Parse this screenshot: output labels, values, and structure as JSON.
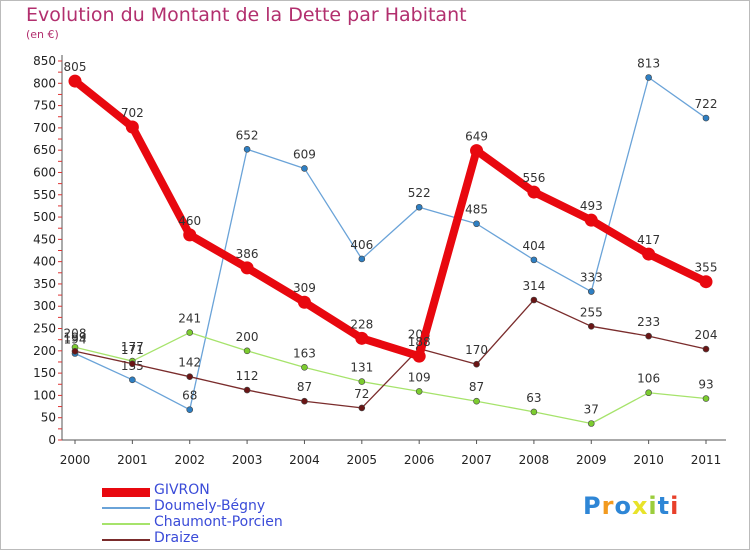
{
  "header": {
    "title": "Evolution du Montant de la Dette par Habitant",
    "subtitle": "(en €)"
  },
  "chart_data": {
    "type": "line",
    "title": "Evolution du Montant de la Dette par Habitant",
    "subtitle": "(en €)",
    "x": [
      "2000",
      "2001",
      "2002",
      "2003",
      "2004",
      "2005",
      "2006",
      "2007",
      "2008",
      "2009",
      "2010",
      "2011"
    ],
    "ylim": [
      0,
      850
    ],
    "yticks": [
      0,
      50,
      100,
      150,
      200,
      250,
      300,
      350,
      400,
      450,
      500,
      550,
      600,
      650,
      700,
      750,
      800,
      850
    ],
    "grid": false,
    "legend_position": "bottom-left",
    "series": [
      {
        "name": "GIVRON",
        "color": "#e8080f",
        "emphasis": true,
        "values": [
          805,
          702,
          460,
          386,
          309,
          228,
          188,
          649,
          556,
          493,
          417,
          355
        ],
        "labels": [
          "805",
          "702",
          "460",
          "386",
          "309",
          "228",
          "188",
          "649",
          "556",
          "493",
          "417",
          "355"
        ]
      },
      {
        "name": "Doumely-Bégny",
        "color": "#6aa3d8",
        "marker": "#2e7fc3",
        "values": [
          194,
          135,
          68,
          652,
          609,
          406,
          522,
          485,
          404,
          333,
          813,
          722
        ],
        "labels": [
          "194",
          "135",
          "68",
          "652",
          "609",
          "406",
          "522",
          "485",
          "404",
          "333",
          "813",
          "722"
        ]
      },
      {
        "name": "Chaumont-Porcien",
        "color": "#a6e36b",
        "marker": "#7ccc2f",
        "values": [
          208,
          177,
          241,
          200,
          163,
          131,
          109,
          87,
          63,
          37,
          106,
          93
        ],
        "labels": [
          "208",
          "177",
          "241",
          "200",
          "163",
          "131",
          "109",
          "87",
          "63",
          "37",
          "106",
          "93"
        ]
      },
      {
        "name": "Draize",
        "color": "#7a2c2c",
        "marker": "#6a1515",
        "values": [
          199,
          171,
          142,
          112,
          87,
          72,
          205,
          170,
          314,
          255,
          233,
          204
        ],
        "labels": [
          "199",
          "171",
          "142",
          "112",
          "87",
          "72",
          "205",
          "170",
          "314",
          "255",
          "233",
          "204"
        ]
      }
    ]
  },
  "legend": {
    "items": [
      {
        "label": "GIVRON",
        "color": "#e8080f"
      },
      {
        "label": "Doumely-Bégny",
        "color": "#6aa3d8"
      },
      {
        "label": "Chaumont-Porcien",
        "color": "#a6e36b"
      },
      {
        "label": "Draize",
        "color": "#7a2c2c"
      }
    ]
  },
  "logo": {
    "text": "Proxiti",
    "letters": [
      "P",
      "r",
      "o",
      "x",
      "i",
      "t",
      "i"
    ],
    "colors": [
      "#2e86d6",
      "#f29a1f",
      "#2e86d6",
      "#e8e32a",
      "#9bcd3c",
      "#2e86d6",
      "#e8402a"
    ]
  }
}
